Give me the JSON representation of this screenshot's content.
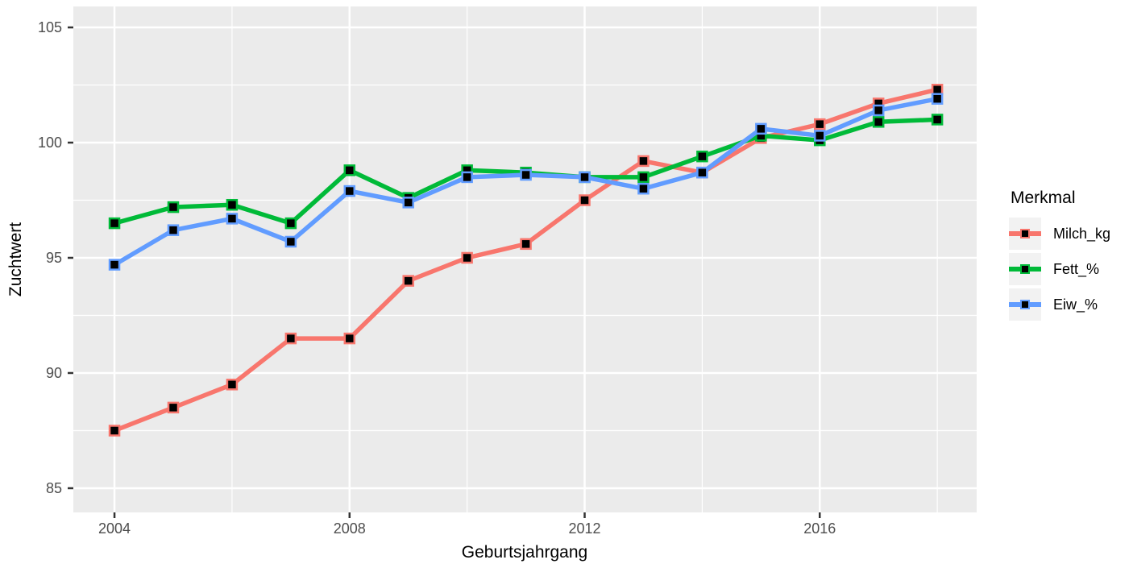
{
  "chart_data": {
    "type": "line",
    "title": "",
    "xlabel": "Geburtsjahrgang",
    "ylabel": "Zuchtwert",
    "legend_title": "Merkmal",
    "legend_position": "right",
    "grid": true,
    "x": [
      2004,
      2005,
      2006,
      2007,
      2008,
      2009,
      2010,
      2011,
      2012,
      2013,
      2014,
      2015,
      2016,
      2017,
      2018
    ],
    "series": [
      {
        "name": "Milch_kg",
        "color": "#F8766D",
        "values": [
          87.5,
          88.5,
          89.5,
          91.5,
          91.5,
          94.0,
          95.0,
          95.6,
          97.5,
          99.2,
          98.7,
          100.2,
          100.8,
          101.7,
          102.3
        ]
      },
      {
        "name": "Fett_%",
        "color": "#00BA38",
        "values": [
          96.5,
          97.2,
          97.3,
          96.5,
          98.8,
          97.6,
          98.8,
          98.7,
          98.5,
          98.5,
          99.4,
          100.3,
          100.1,
          100.9,
          101.0
        ]
      },
      {
        "name": "Eiw_%",
        "color": "#619CFF",
        "values": [
          94.7,
          96.2,
          96.7,
          95.7,
          97.9,
          97.4,
          98.5,
          98.6,
          98.5,
          98.0,
          98.7,
          100.6,
          100.3,
          101.4,
          101.9
        ]
      }
    ],
    "marker": "black-square",
    "x_ticks": [
      2004,
      2008,
      2012,
      2016
    ],
    "x_tick_labels": [
      "2004",
      "2008",
      "2012",
      "2016"
    ],
    "x_minor_ticks": [
      2006,
      2010,
      2014,
      2018
    ],
    "y_ticks": [
      85,
      90,
      95,
      100,
      105
    ],
    "y_tick_labels": [
      "85",
      "90",
      "95",
      "100",
      "105"
    ],
    "y_minor_ticks": [
      87.5,
      92.5,
      97.5,
      102.5
    ],
    "xlim": [
      2003.3,
      2018.67
    ],
    "ylim": [
      83.95,
      105.91
    ],
    "theme": {
      "panel_bg": "#EBEBEB",
      "grid_color": "#FFFFFF",
      "axis_text_color": "#4D4D4D",
      "axis_title_color": "#000000",
      "tick_mark_color": "#333333",
      "legend_key_bg": "#F2F2F2",
      "marker_fill": "#000000"
    }
  }
}
